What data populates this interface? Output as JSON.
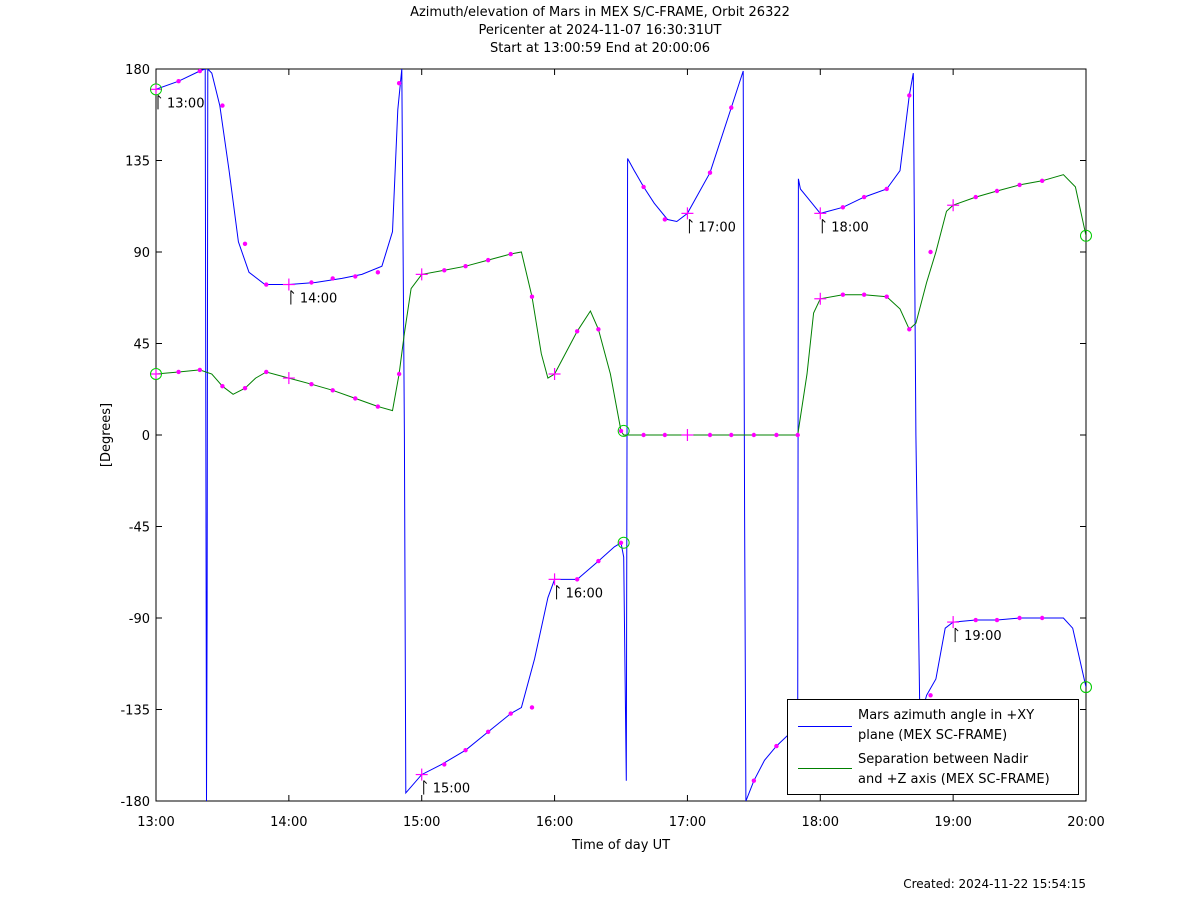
{
  "titles": {
    "line1": "Azimuth/elevation of Mars in MEX S/C-FRAME,  Orbit 26322",
    "line2": "Pericenter at 2024-11-07 16:30:31UT",
    "line3": "Start at 13:00:59 End at 20:00:06"
  },
  "created": "Created: 2024-11-22 15:54:15",
  "chart_data": {
    "type": "line",
    "xlabel": "Time of day UT",
    "ylabel": "[Degrees]",
    "xlim": [
      13.0,
      20.0
    ],
    "ylim": [
      -180,
      180
    ],
    "x_ticks": [
      "13:00",
      "14:00",
      "15:00",
      "16:00",
      "17:00",
      "18:00",
      "19:00",
      "20:00"
    ],
    "y_ticks": [
      "180",
      "135",
      "90",
      "45",
      "0",
      "-45",
      "-90",
      "-135",
      "-180"
    ],
    "grid": false,
    "legend_position": "bottom-right",
    "colors": {
      "azimuth": "#0000ff",
      "separation": "#008000",
      "markers": "#ff00ff",
      "endpoints": "#00cc00"
    },
    "series": [
      {
        "name": "Mars azimuth angle in +XY plane (MEX SC-FRAME)",
        "legend_lines": [
          "Mars azimuth angle in +XY",
          "plane (MEX SC-FRAME)"
        ],
        "key": "azimuth",
        "points": [
          [
            13.0,
            170
          ],
          [
            13.17,
            174
          ],
          [
            13.33,
            179
          ],
          [
            13.37,
            180
          ],
          [
            13.38,
            -180
          ],
          [
            13.385,
            -90
          ],
          [
            13.39,
            180
          ],
          [
            13.42,
            178
          ],
          [
            13.48,
            162
          ],
          [
            13.55,
            130
          ],
          [
            13.62,
            95
          ],
          [
            13.7,
            80
          ],
          [
            13.82,
            74
          ],
          [
            14.0,
            74
          ],
          [
            14.2,
            75
          ],
          [
            14.4,
            77
          ],
          [
            14.55,
            79
          ],
          [
            14.7,
            83
          ],
          [
            14.78,
            100
          ],
          [
            14.82,
            160
          ],
          [
            14.85,
            180
          ],
          [
            14.87,
            0
          ],
          [
            14.88,
            -176
          ],
          [
            15.0,
            -167
          ],
          [
            15.15,
            -162
          ],
          [
            15.33,
            -155
          ],
          [
            15.5,
            -146
          ],
          [
            15.67,
            -137
          ],
          [
            15.75,
            -134
          ],
          [
            15.85,
            -110
          ],
          [
            15.95,
            -80
          ],
          [
            16.0,
            -71
          ],
          [
            16.17,
            -71
          ],
          [
            16.33,
            -62
          ],
          [
            16.45,
            -55
          ],
          [
            16.5,
            -53
          ],
          [
            16.52,
            -60
          ],
          [
            16.54,
            -170
          ],
          [
            16.55,
            136
          ],
          [
            16.6,
            130
          ],
          [
            16.67,
            122
          ],
          [
            16.75,
            114
          ],
          [
            16.85,
            106
          ],
          [
            16.92,
            105
          ],
          [
            17.0,
            109
          ],
          [
            17.17,
            129
          ],
          [
            17.33,
            161
          ],
          [
            17.42,
            179
          ],
          [
            17.43,
            -40
          ],
          [
            17.44,
            -180
          ],
          [
            17.5,
            -170
          ],
          [
            17.58,
            -160
          ],
          [
            17.67,
            -153
          ],
          [
            17.75,
            -148
          ],
          [
            17.83,
            -145
          ],
          [
            17.835,
            126
          ],
          [
            17.85,
            121
          ],
          [
            17.9,
            117
          ],
          [
            18.0,
            109
          ],
          [
            18.17,
            112
          ],
          [
            18.33,
            117
          ],
          [
            18.5,
            121
          ],
          [
            18.6,
            130
          ],
          [
            18.67,
            167
          ],
          [
            18.7,
            178
          ],
          [
            18.72,
            0
          ],
          [
            18.75,
            -140
          ],
          [
            18.8,
            -128
          ],
          [
            18.87,
            -120
          ],
          [
            18.94,
            -95
          ],
          [
            19.0,
            -92
          ],
          [
            19.17,
            -91
          ],
          [
            19.33,
            -91
          ],
          [
            19.5,
            -90
          ],
          [
            19.67,
            -90
          ],
          [
            19.83,
            -90
          ],
          [
            19.9,
            -95
          ],
          [
            20.0,
            -124
          ]
        ],
        "markers": [
          [
            13.17,
            174
          ],
          [
            13.33,
            179
          ],
          [
            13.5,
            162
          ],
          [
            13.67,
            94
          ],
          [
            13.83,
            74
          ],
          [
            14.17,
            75
          ],
          [
            14.33,
            77
          ],
          [
            14.5,
            78
          ],
          [
            14.67,
            80
          ],
          [
            14.83,
            173
          ],
          [
            15.17,
            -162
          ],
          [
            15.33,
            -155
          ],
          [
            15.5,
            -146
          ],
          [
            15.67,
            -137
          ],
          [
            15.83,
            -134
          ],
          [
            16.17,
            -71
          ],
          [
            16.33,
            -62
          ],
          [
            16.5,
            -53
          ],
          [
            16.67,
            122
          ],
          [
            16.83,
            106
          ],
          [
            17.17,
            129
          ],
          [
            17.33,
            161
          ],
          [
            17.5,
            -170
          ],
          [
            17.67,
            -153
          ],
          [
            17.83,
            -145
          ],
          [
            18.17,
            112
          ],
          [
            18.33,
            117
          ],
          [
            18.5,
            121
          ],
          [
            18.67,
            167
          ],
          [
            18.83,
            -128
          ],
          [
            19.17,
            -91
          ],
          [
            19.33,
            -91
          ],
          [
            19.5,
            -90
          ],
          [
            19.67,
            -90
          ]
        ],
        "hour_markers": [
          [
            13.0,
            170
          ],
          [
            14.0,
            74
          ],
          [
            15.0,
            -167
          ],
          [
            16.0,
            -71
          ],
          [
            17.0,
            109
          ],
          [
            18.0,
            109
          ],
          [
            19.0,
            -92
          ]
        ],
        "hour_labels": [
          "13:00",
          "14:00",
          "15:00",
          "16:00",
          "17:00",
          "18:00",
          "19:00"
        ],
        "endpoints": [
          [
            13.0,
            170
          ],
          [
            16.52,
            -53
          ],
          [
            20.0,
            -124
          ]
        ]
      },
      {
        "name": "Separation between Nadir and +Z axis (MEX SC-FRAME)",
        "legend_lines": [
          "Separation between Nadir",
          "and +Z axis (MEX SC-FRAME)"
        ],
        "key": "separation",
        "points": [
          [
            13.0,
            30
          ],
          [
            13.17,
            31
          ],
          [
            13.33,
            32
          ],
          [
            13.42,
            30
          ],
          [
            13.5,
            24
          ],
          [
            13.58,
            20
          ],
          [
            13.67,
            23
          ],
          [
            13.75,
            28
          ],
          [
            13.83,
            31
          ],
          [
            14.0,
            28
          ],
          [
            14.17,
            25
          ],
          [
            14.33,
            22
          ],
          [
            14.5,
            18
          ],
          [
            14.67,
            14
          ],
          [
            14.78,
            12
          ],
          [
            14.83,
            30
          ],
          [
            14.87,
            50
          ],
          [
            14.92,
            72
          ],
          [
            15.0,
            79
          ],
          [
            15.17,
            81
          ],
          [
            15.33,
            83
          ],
          [
            15.5,
            86
          ],
          [
            15.67,
            89
          ],
          [
            15.75,
            90
          ],
          [
            15.83,
            68
          ],
          [
            15.9,
            40
          ],
          [
            15.95,
            28
          ],
          [
            16.0,
            30
          ],
          [
            16.17,
            51
          ],
          [
            16.27,
            61
          ],
          [
            16.33,
            52
          ],
          [
            16.42,
            30
          ],
          [
            16.5,
            2
          ],
          [
            16.52,
            0
          ],
          [
            17.0,
            0
          ],
          [
            17.5,
            0
          ],
          [
            17.83,
            0
          ],
          [
            17.9,
            30
          ],
          [
            17.95,
            60
          ],
          [
            18.0,
            67
          ],
          [
            18.17,
            69
          ],
          [
            18.33,
            69
          ],
          [
            18.5,
            68
          ],
          [
            18.6,
            62
          ],
          [
            18.67,
            52
          ],
          [
            18.72,
            55
          ],
          [
            18.8,
            75
          ],
          [
            18.87,
            90
          ],
          [
            18.95,
            110
          ],
          [
            19.0,
            113
          ],
          [
            19.17,
            117
          ],
          [
            19.33,
            120
          ],
          [
            19.5,
            123
          ],
          [
            19.67,
            125
          ],
          [
            19.83,
            128
          ],
          [
            19.92,
            122
          ],
          [
            20.0,
            98
          ]
        ],
        "markers": [
          [
            13.17,
            31
          ],
          [
            13.33,
            32
          ],
          [
            13.5,
            24
          ],
          [
            13.67,
            23
          ],
          [
            13.83,
            31
          ],
          [
            14.17,
            25
          ],
          [
            14.33,
            22
          ],
          [
            14.5,
            18
          ],
          [
            14.67,
            14
          ],
          [
            14.83,
            30
          ],
          [
            15.17,
            81
          ],
          [
            15.33,
            83
          ],
          [
            15.5,
            86
          ],
          [
            15.67,
            89
          ],
          [
            15.83,
            68
          ],
          [
            16.17,
            51
          ],
          [
            16.33,
            52
          ],
          [
            16.5,
            2
          ],
          [
            16.67,
            0
          ],
          [
            16.83,
            0
          ],
          [
            17.17,
            0
          ],
          [
            17.33,
            0
          ],
          [
            17.5,
            0
          ],
          [
            17.67,
            0
          ],
          [
            17.83,
            0
          ],
          [
            18.17,
            69
          ],
          [
            18.33,
            69
          ],
          [
            18.5,
            68
          ],
          [
            18.67,
            52
          ],
          [
            18.83,
            90
          ],
          [
            19.17,
            117
          ],
          [
            19.33,
            120
          ],
          [
            19.5,
            123
          ],
          [
            19.67,
            125
          ]
        ],
        "hour_markers": [
          [
            13.0,
            30
          ],
          [
            14.0,
            28
          ],
          [
            15.0,
            79
          ],
          [
            16.0,
            30
          ],
          [
            17.0,
            0
          ],
          [
            18.0,
            67
          ],
          [
            19.0,
            113
          ]
        ],
        "endpoints": [
          [
            13.0,
            30
          ],
          [
            16.52,
            2
          ],
          [
            20.0,
            98
          ]
        ]
      }
    ]
  }
}
